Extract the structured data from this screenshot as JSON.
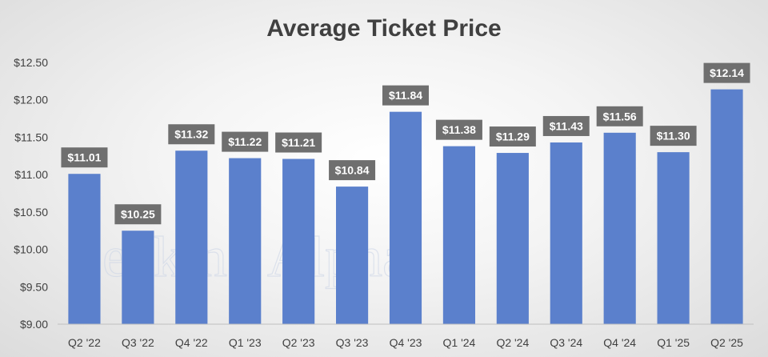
{
  "chart_data": {
    "type": "bar",
    "title": "Average Ticket Price",
    "xlabel": "",
    "ylabel": "",
    "categories": [
      "Q2 '22",
      "Q3 '22",
      "Q4 '22",
      "Q1 '23",
      "Q2 '23",
      "Q3 '23",
      "Q4 '23",
      "Q1 '24",
      "Q2 '24",
      "Q3 '24",
      "Q4 '24",
      "Q1 '25",
      "Q2 '25"
    ],
    "values": [
      11.01,
      10.25,
      11.32,
      11.22,
      11.21,
      10.84,
      11.84,
      11.38,
      11.29,
      11.43,
      11.56,
      11.3,
      12.14
    ],
    "data_labels": [
      "$11.01",
      "$10.25",
      "$11.32",
      "$11.22",
      "$11.21",
      "$10.84",
      "$11.84",
      "$11.38",
      "$11.29",
      "$11.43",
      "$11.56",
      "$11.30",
      "$12.14"
    ],
    "ylim": [
      9.0,
      12.5
    ],
    "y_ticks": [
      9.0,
      9.5,
      10.0,
      10.5,
      11.0,
      11.5,
      12.0,
      12.5
    ],
    "y_tick_labels": [
      "$9.00",
      "$9.50",
      "$10.00",
      "$10.50",
      "$11.00",
      "$11.50",
      "$12.00",
      "$12.50"
    ],
    "grid": false,
    "legend": "none",
    "colors": {
      "bar": "#5b80cc",
      "label_box": "#6f6f6f",
      "label_text": "#ffffff",
      "axis": "#bfbfbf"
    }
  },
  "watermark": "Seeking Alpha"
}
